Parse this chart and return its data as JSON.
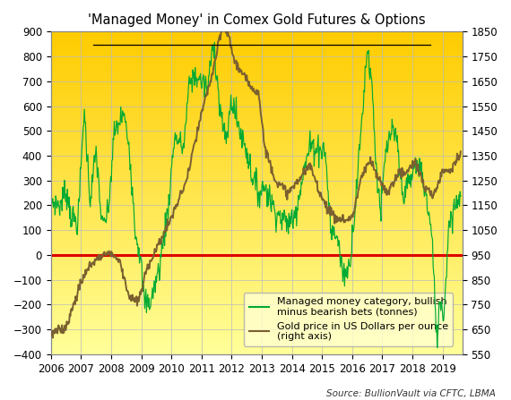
{
  "title": "'Managed Money' in Comex Gold Futures & Options",
  "source_text": "Source: BullionVault via CFTC, LBMA",
  "left_ylim": [
    -400,
    900
  ],
  "right_ylim": [
    550,
    1850
  ],
  "left_yticks": [
    -400,
    -300,
    -200,
    -100,
    0,
    100,
    200,
    300,
    400,
    500,
    600,
    700,
    800,
    900
  ],
  "right_yticks": [
    550,
    650,
    750,
    850,
    950,
    1050,
    1150,
    1250,
    1350,
    1450,
    1550,
    1650,
    1750,
    1850
  ],
  "xtick_positions": [
    2006,
    2007,
    2008,
    2009,
    2010,
    2011,
    2012,
    2013,
    2014,
    2015,
    2016,
    2017,
    2018,
    2019
  ],
  "xlim": [
    2006.0,
    2019.65
  ],
  "bg_color_bottom": "#FFFF99",
  "bg_color_top": "#FFCC00",
  "grid_color": "#BBBBBB",
  "zero_line_color": "#DD0000",
  "mm_color": "#00AA33",
  "gold_color": "#7A6030",
  "legend_mm": "Managed money category, bullish\nminus bearish bets (tonnes)",
  "legend_gold": "Gold price in US Dollars per ounce\n(right axis)",
  "title_fontsize": 10.5,
  "tick_fontsize": 8.5,
  "source_fontsize": 7.5,
  "legend_fontsize": 8,
  "fig_width": 5.7,
  "fig_height": 4.47,
  "dpi": 100,
  "mm_wp_t": [
    2006.0,
    2006.3,
    2006.5,
    2006.7,
    2006.9,
    2007.1,
    2007.3,
    2007.5,
    2007.7,
    2007.9,
    2008.1,
    2008.4,
    2008.6,
    2008.8,
    2008.95,
    2009.1,
    2009.3,
    2009.6,
    2009.9,
    2010.1,
    2010.4,
    2010.6,
    2010.8,
    2011.0,
    2011.2,
    2011.4,
    2011.6,
    2011.8,
    2012.0,
    2012.2,
    2012.5,
    2012.7,
    2012.9,
    2013.1,
    2013.4,
    2013.7,
    2013.9,
    2014.1,
    2014.3,
    2014.6,
    2014.9,
    2015.1,
    2015.3,
    2015.5,
    2015.7,
    2015.9,
    2016.1,
    2016.3,
    2016.5,
    2016.65,
    2016.8,
    2016.95,
    2017.1,
    2017.3,
    2017.5,
    2017.65,
    2017.8,
    2017.95,
    2018.1,
    2018.3,
    2018.5,
    2018.65,
    2018.8,
    2018.92,
    2019.05,
    2019.2,
    2019.4,
    2019.6
  ],
  "mm_wp_v": [
    220,
    200,
    260,
    150,
    130,
    590,
    220,
    420,
    110,
    170,
    490,
    570,
    440,
    100,
    10,
    -190,
    -190,
    -50,
    200,
    480,
    430,
    700,
    720,
    700,
    670,
    870,
    600,
    450,
    630,
    530,
    420,
    310,
    250,
    280,
    190,
    140,
    130,
    160,
    290,
    440,
    430,
    420,
    90,
    80,
    -80,
    -50,
    200,
    510,
    840,
    700,
    350,
    170,
    400,
    500,
    450,
    250,
    270,
    300,
    370,
    340,
    200,
    70,
    -340,
    -180,
    -240,
    120,
    200,
    250
  ],
  "gold_wp_t": [
    2006.0,
    2006.5,
    2007.0,
    2007.3,
    2007.7,
    2008.0,
    2008.3,
    2008.6,
    2008.9,
    2009.2,
    2009.6,
    2010.0,
    2010.5,
    2011.0,
    2011.4,
    2011.7,
    2011.9,
    2012.1,
    2012.5,
    2012.9,
    2013.1,
    2013.5,
    2013.9,
    2014.2,
    2014.6,
    2015.0,
    2015.4,
    2015.8,
    2016.0,
    2016.3,
    2016.6,
    2016.9,
    2017.2,
    2017.5,
    2017.8,
    2018.1,
    2018.4,
    2018.7,
    2019.0,
    2019.3,
    2019.6
  ],
  "gold_wp_v": [
    630,
    660,
    840,
    910,
    950,
    960,
    920,
    780,
    760,
    900,
    1000,
    1100,
    1250,
    1520,
    1700,
    1880,
    1830,
    1730,
    1650,
    1600,
    1380,
    1240,
    1200,
    1250,
    1310,
    1180,
    1100,
    1090,
    1100,
    1260,
    1330,
    1250,
    1200,
    1280,
    1280,
    1330,
    1220,
    1190,
    1290,
    1300,
    1360
  ]
}
